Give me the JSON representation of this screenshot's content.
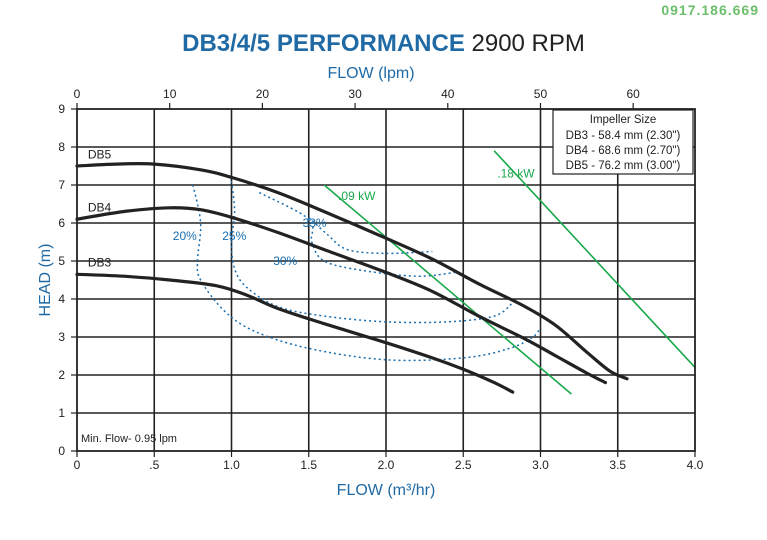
{
  "watermark": "0917.186.669",
  "chart_data": {
    "type": "line",
    "title_bold": "DB3/4/5 PERFORMANCE",
    "title_rest": "2900 RPM",
    "xlabel": "FLOW (m³/hr)",
    "ylabel": "HEAD (m)",
    "x2label": "FLOW (lpm)",
    "xlim": [
      0,
      4.0
    ],
    "ylim": [
      0,
      9
    ],
    "x2lim": [
      0,
      66.67
    ],
    "xticks": [
      0,
      0.5,
      1.0,
      1.5,
      2.0,
      2.5,
      3.0,
      3.5,
      4.0
    ],
    "xticklabels": [
      "0",
      ".5",
      "1.0",
      "1.5",
      "2.0",
      "2.5",
      "3.0",
      "3.5",
      "4.0"
    ],
    "yticks": [
      0,
      1,
      2,
      3,
      4,
      5,
      6,
      7,
      8,
      9
    ],
    "yticklabels": [
      "0",
      "1",
      "2",
      "3",
      "4",
      "5",
      "6",
      "7",
      "8",
      "9"
    ],
    "x2ticks": [
      0,
      10,
      20,
      30,
      40,
      50,
      60
    ],
    "x2ticklabels": [
      "0",
      "10",
      "20",
      "30",
      "40",
      "50",
      "60"
    ],
    "grid": true,
    "series": [
      {
        "name": "DB5",
        "color": "#222222",
        "width": 3.2,
        "points": [
          [
            0,
            7.5
          ],
          [
            0.25,
            7.55
          ],
          [
            0.5,
            7.55
          ],
          [
            0.8,
            7.4
          ],
          [
            1.0,
            7.2
          ],
          [
            1.3,
            6.8
          ],
          [
            1.6,
            6.3
          ],
          [
            2.0,
            5.6
          ],
          [
            2.3,
            5.05
          ],
          [
            2.6,
            4.4
          ],
          [
            2.9,
            3.8
          ],
          [
            3.1,
            3.3
          ],
          [
            3.3,
            2.6
          ],
          [
            3.45,
            2.1
          ],
          [
            3.56,
            1.9
          ]
        ]
      },
      {
        "name": "DB4",
        "color": "#222222",
        "width": 3.2,
        "points": [
          [
            0,
            6.1
          ],
          [
            0.3,
            6.3
          ],
          [
            0.6,
            6.4
          ],
          [
            0.8,
            6.35
          ],
          [
            1.0,
            6.15
          ],
          [
            1.3,
            5.75
          ],
          [
            1.6,
            5.3
          ],
          [
            2.0,
            4.7
          ],
          [
            2.3,
            4.2
          ],
          [
            2.6,
            3.55
          ],
          [
            2.9,
            2.95
          ],
          [
            3.1,
            2.5
          ],
          [
            3.3,
            2.05
          ],
          [
            3.42,
            1.8
          ]
        ]
      },
      {
        "name": "DB3",
        "color": "#222222",
        "width": 3.2,
        "points": [
          [
            0,
            4.65
          ],
          [
            0.3,
            4.6
          ],
          [
            0.6,
            4.5
          ],
          [
            0.9,
            4.35
          ],
          [
            1.1,
            4.1
          ],
          [
            1.3,
            3.75
          ],
          [
            1.6,
            3.35
          ],
          [
            2.0,
            2.85
          ],
          [
            2.3,
            2.45
          ],
          [
            2.5,
            2.15
          ],
          [
            2.7,
            1.8
          ],
          [
            2.82,
            1.55
          ]
        ]
      }
    ],
    "series_labels": [
      {
        "text": "DB5",
        "x": 0.07,
        "y": 7.7
      },
      {
        "text": "DB4",
        "x": 0.07,
        "y": 6.3
      },
      {
        "text": "DB3",
        "x": 0.07,
        "y": 4.85
      }
    ],
    "efficiency_curves": [
      {
        "label": "20%",
        "color": "#1a6fb0",
        "points": [
          [
            0.75,
            7.0
          ],
          [
            0.8,
            6.0
          ],
          [
            0.78,
            5.0
          ],
          [
            0.8,
            4.5
          ],
          [
            0.95,
            3.7
          ],
          [
            1.15,
            3.15
          ],
          [
            1.5,
            2.7
          ],
          [
            2.0,
            2.4
          ],
          [
            2.5,
            2.45
          ],
          [
            2.8,
            2.7
          ],
          [
            2.95,
            3.0
          ],
          [
            3.0,
            3.25
          ]
        ]
      },
      {
        "label": "25%",
        "color": "#1a6fb0",
        "points": [
          [
            1.0,
            7.1
          ],
          [
            1.02,
            6.3
          ],
          [
            1.0,
            5.5
          ],
          [
            1.02,
            4.8
          ],
          [
            1.1,
            4.3
          ],
          [
            1.3,
            3.8
          ],
          [
            1.6,
            3.55
          ],
          [
            2.0,
            3.4
          ],
          [
            2.4,
            3.4
          ],
          [
            2.7,
            3.55
          ],
          [
            2.82,
            3.9
          ]
        ]
      },
      {
        "label": "30%",
        "color": "#1a6fb0",
        "points": [
          [
            1.18,
            6.8
          ],
          [
            1.5,
            6.1
          ],
          [
            1.52,
            5.5
          ],
          [
            1.6,
            5.0
          ],
          [
            1.85,
            4.75
          ],
          [
            2.2,
            4.6
          ],
          [
            2.45,
            4.7
          ]
        ]
      },
      {
        "label": "33%",
        "color": "#1a6fb0",
        "points": [
          [
            1.5,
            6.15
          ],
          [
            1.62,
            5.7
          ],
          [
            1.75,
            5.3
          ],
          [
            2.0,
            5.2
          ],
          [
            2.3,
            5.25
          ]
        ]
      }
    ],
    "efficiency_labels": [
      {
        "text": "20%",
        "x": 0.62,
        "y": 5.55
      },
      {
        "text": "25%",
        "x": 0.94,
        "y": 5.55
      },
      {
        "text": "30%",
        "x": 1.27,
        "y": 4.9
      },
      {
        "text": "33%",
        "x": 1.46,
        "y": 5.9
      }
    ],
    "power_lines": [
      {
        "label": ".09 kW",
        "color": "#1aa84b",
        "points": [
          [
            1.6,
            7.0
          ],
          [
            3.2,
            1.5
          ]
        ]
      },
      {
        "label": ".18 kW",
        "color": "#1aa84b",
        "points": [
          [
            2.7,
            7.9
          ],
          [
            4.0,
            2.2
          ]
        ]
      }
    ],
    "power_labels": [
      {
        "text": ".09 kW",
        "x": 1.69,
        "y": 6.6
      },
      {
        "text": ".18 kW",
        "x": 2.72,
        "y": 7.2
      }
    ],
    "legend": {
      "placement": "top-right",
      "title": "Impeller Size",
      "entries": [
        "DB3 - 58.4 mm (2.30\")",
        "DB4 - 68.6 mm (2.70\")",
        "DB5 - 76.2 mm (3.00\")"
      ]
    },
    "annotation": "Min. Flow-  0.95 lpm"
  }
}
